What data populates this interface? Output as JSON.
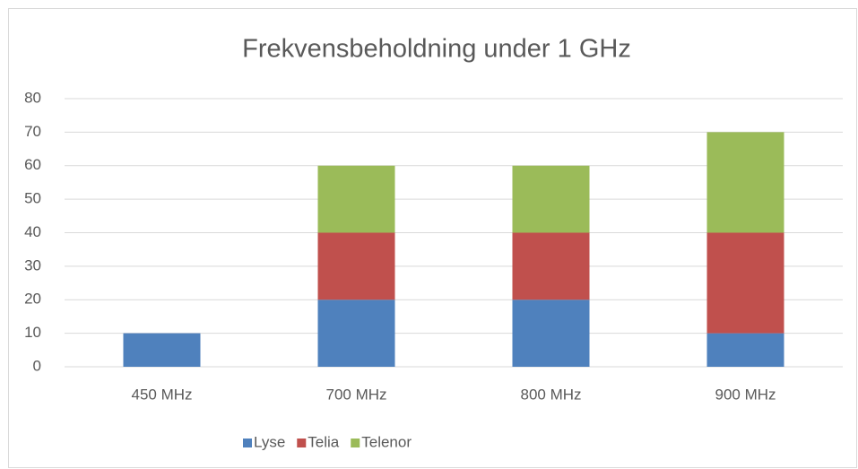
{
  "chart_data": {
    "type": "bar",
    "stacked": true,
    "title": "Frekvensbeholdning under 1 GHz",
    "categories": [
      "450 MHz",
      "700 MHz",
      "800 MHz",
      "900 MHz"
    ],
    "series": [
      {
        "name": "Lyse",
        "color": "#4f81bd",
        "values": [
          10,
          20,
          20,
          10
        ]
      },
      {
        "name": "Telia",
        "color": "#c0504d",
        "values": [
          0,
          20,
          20,
          30
        ]
      },
      {
        "name": "Telenor",
        "color": "#9bbb59",
        "values": [
          0,
          20,
          20,
          30
        ]
      }
    ],
    "ylim": [
      0,
      80
    ],
    "yticks": [
      0,
      10,
      20,
      30,
      40,
      50,
      60,
      70,
      80
    ],
    "grid": true,
    "legend": "bottom"
  }
}
